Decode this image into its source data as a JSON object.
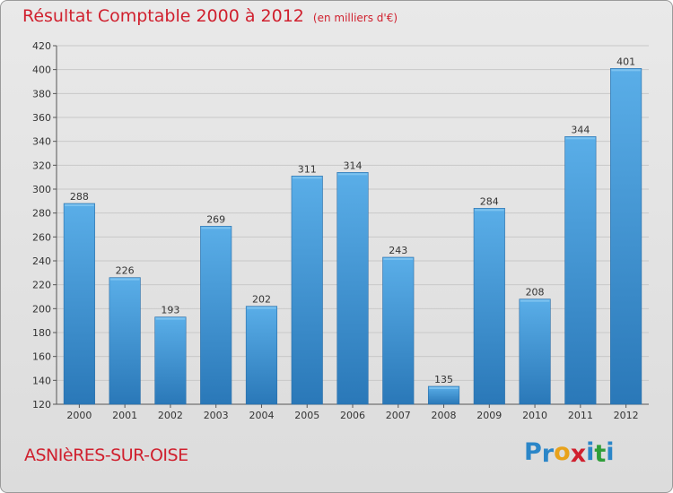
{
  "header": {
    "title": "Résultat Comptable 2000 à 2012",
    "subtitle": "(en milliers d'€)"
  },
  "footer": {
    "commune": "ASNIèRES-SUR-OISE",
    "logo_text": "Proxiti",
    "logo_letters": [
      {
        "ch": "P",
        "color": "#2b86c8"
      },
      {
        "ch": "r",
        "color": "#2b86c8"
      },
      {
        "ch": "o",
        "color": "#e8a21b"
      },
      {
        "ch": "x",
        "color": "#d0202e"
      },
      {
        "ch": "i",
        "color": "#2b86c8"
      },
      {
        "ch": "t",
        "color": "#2f9e3a"
      },
      {
        "ch": "i",
        "color": "#2b86c8"
      }
    ]
  },
  "chart_data": {
    "type": "bar",
    "categories": [
      "2000",
      "2001",
      "2002",
      "2003",
      "2004",
      "2005",
      "2006",
      "2007",
      "2008",
      "2009",
      "2010",
      "2011",
      "2012"
    ],
    "values": [
      288,
      226,
      193,
      269,
      202,
      311,
      314,
      243,
      135,
      284,
      208,
      344,
      401
    ],
    "ylim": [
      120,
      420
    ],
    "yticks": [
      120,
      140,
      160,
      180,
      200,
      220,
      240,
      260,
      280,
      300,
      320,
      340,
      360,
      380,
      400,
      420
    ],
    "grid": true,
    "bar_color_top": "#5aaee8",
    "bar_color_bottom": "#2a78b8",
    "title": "Résultat Comptable 2000 à 2012",
    "subtitle": "(en milliers d'€)"
  }
}
